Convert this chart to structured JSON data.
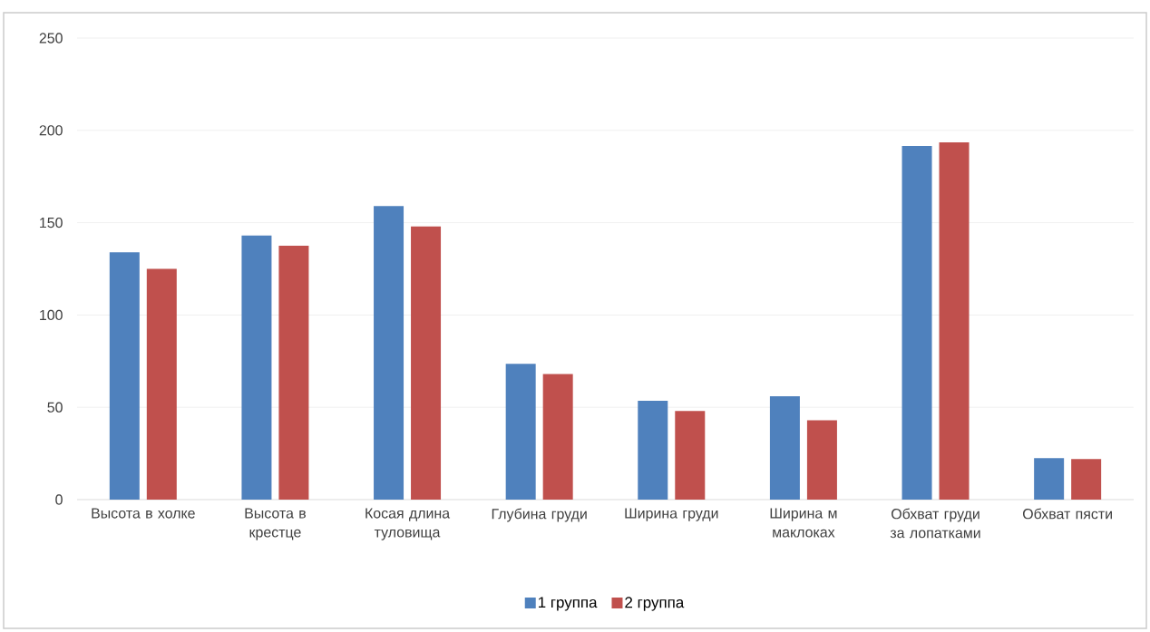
{
  "chart_data": {
    "type": "bar",
    "categories": [
      "Высота в холке",
      "Высота в крестце",
      "Косая длина туловища",
      "Глубина груди",
      "Ширина груди",
      "Ширина м маклоках",
      "Обхват груди за лопатками",
      "Обхват пясти"
    ],
    "series": [
      {
        "name": "1 группа",
        "color": "#4f81bd",
        "values": [
          134,
          143,
          159,
          73.5,
          53.5,
          56,
          191.5,
          22.5
        ]
      },
      {
        "name": "2 группа",
        "color": "#c0504d",
        "values": [
          125,
          137.5,
          148,
          68,
          48,
          43,
          193.5,
          22
        ]
      }
    ],
    "ylim": [
      0,
      250
    ],
    "yticks": [
      0,
      50,
      100,
      150,
      200,
      250
    ],
    "grid": "y",
    "legend": "bottom"
  }
}
